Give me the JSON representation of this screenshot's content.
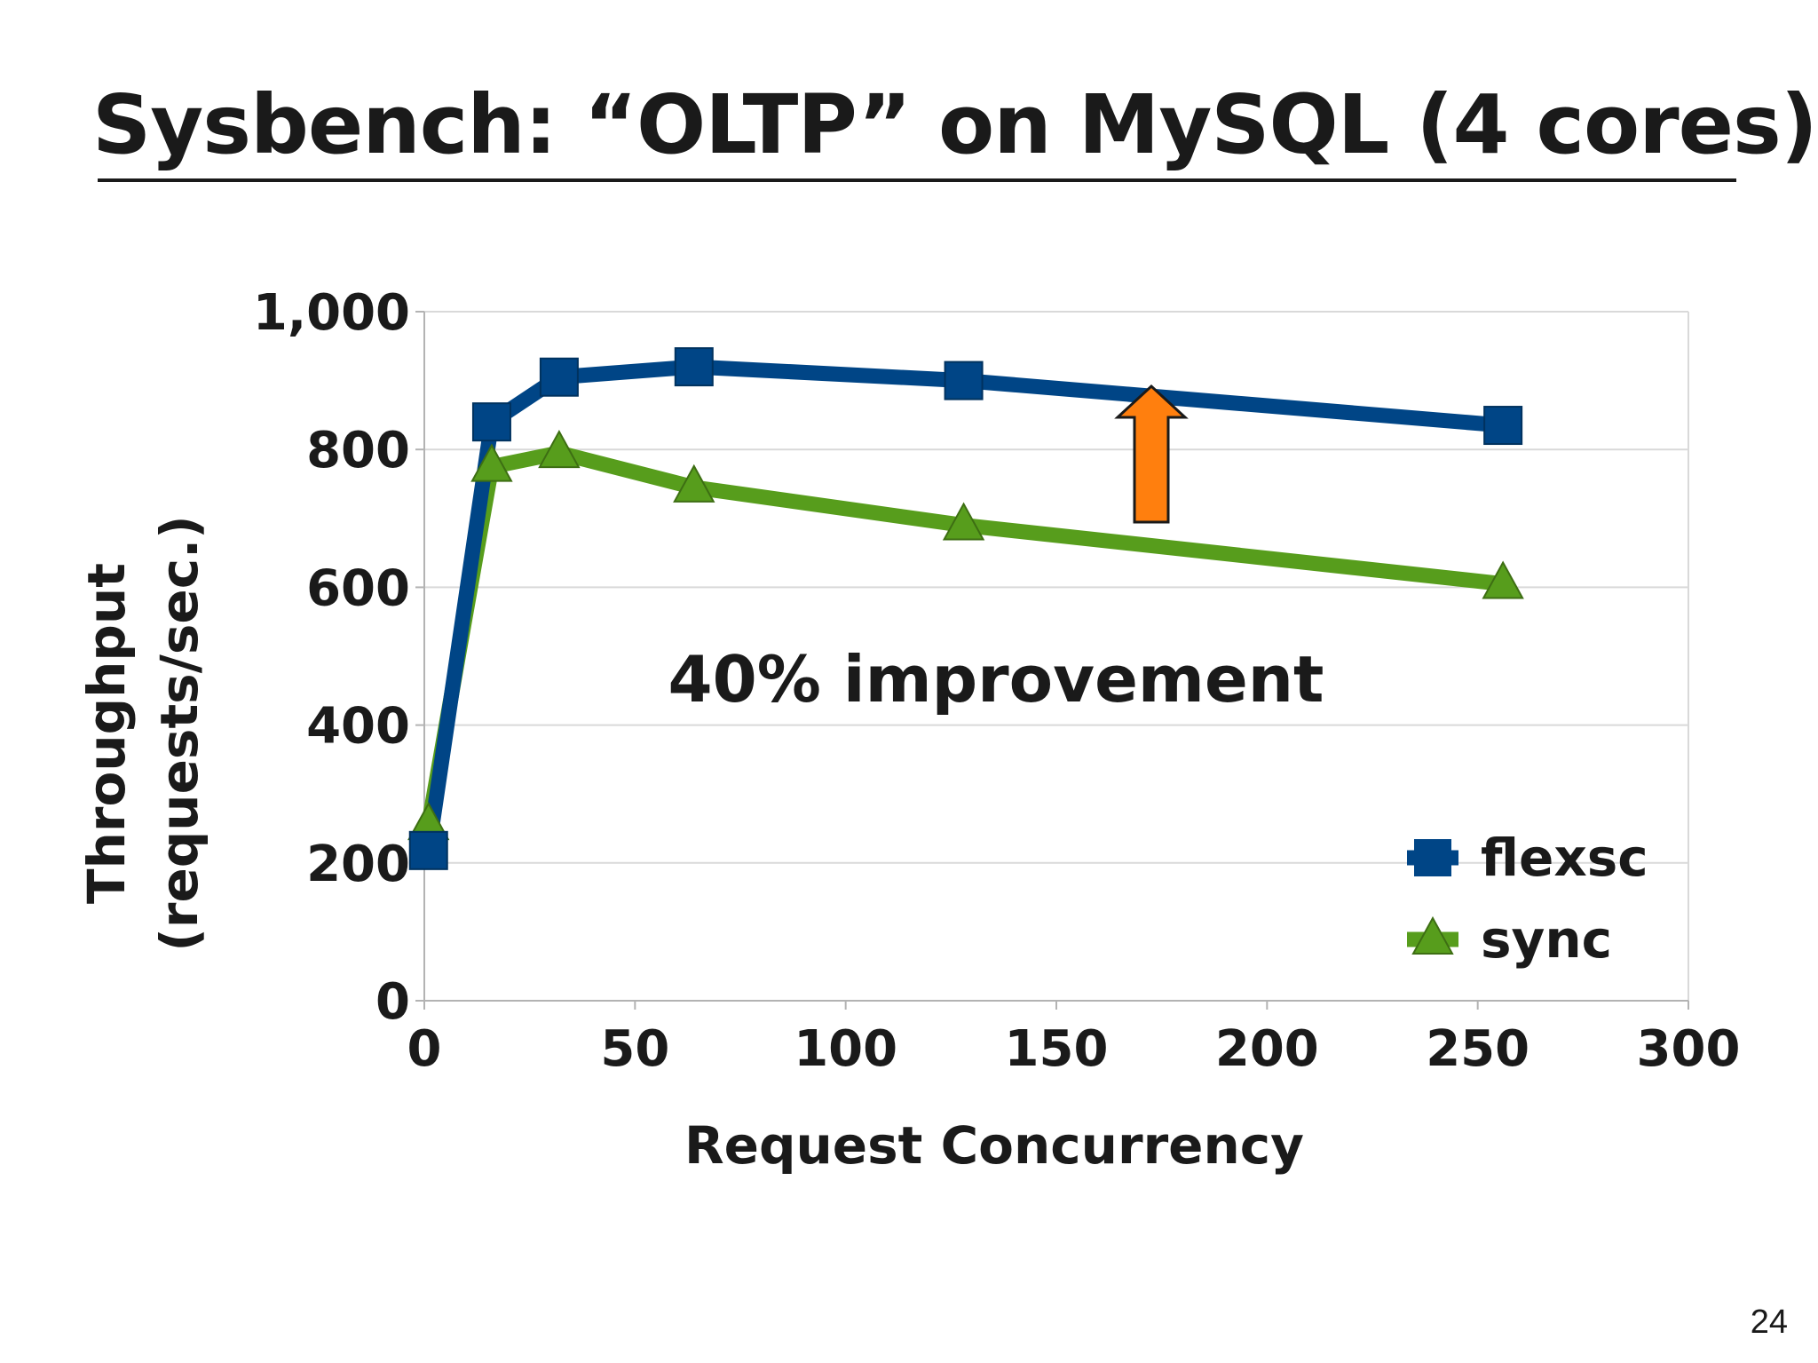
{
  "slide": {
    "title": "Sysbench: “OLTP” on MySQL (4 cores)",
    "page_number": "24"
  },
  "chart_data": {
    "type": "line",
    "title": "",
    "xlabel": "Request Concurrency",
    "ylabel_lines": [
      "Throughput",
      "(requests/sec.)"
    ],
    "xlim": [
      0,
      300
    ],
    "ylim": [
      0,
      1000
    ],
    "x_ticks": [
      0,
      50,
      100,
      150,
      200,
      250,
      300
    ],
    "y_ticks": [
      0,
      200,
      400,
      600,
      800,
      1000
    ],
    "x_tick_labels": [
      "0",
      "50",
      "100",
      "150",
      "200",
      "250",
      "300"
    ],
    "y_tick_labels": [
      "0",
      "200",
      "400",
      "600",
      "800",
      "1,000"
    ],
    "grid": "horizontal",
    "legend_position": "bottom-right",
    "annotation": "40% improvement",
    "annotation_arrow_color": "#ff7f0e",
    "series": [
      {
        "name": "flexsc",
        "color": "#004586",
        "marker": "square",
        "x": [
          1,
          16,
          32,
          64,
          128,
          256
        ],
        "values": [
          218,
          840,
          905,
          920,
          900,
          835
        ]
      },
      {
        "name": "sync",
        "color": "#579d1c",
        "marker": "triangle",
        "x": [
          1,
          16,
          32,
          64,
          128,
          256
        ],
        "values": [
          255,
          775,
          795,
          745,
          690,
          605
        ]
      }
    ]
  }
}
